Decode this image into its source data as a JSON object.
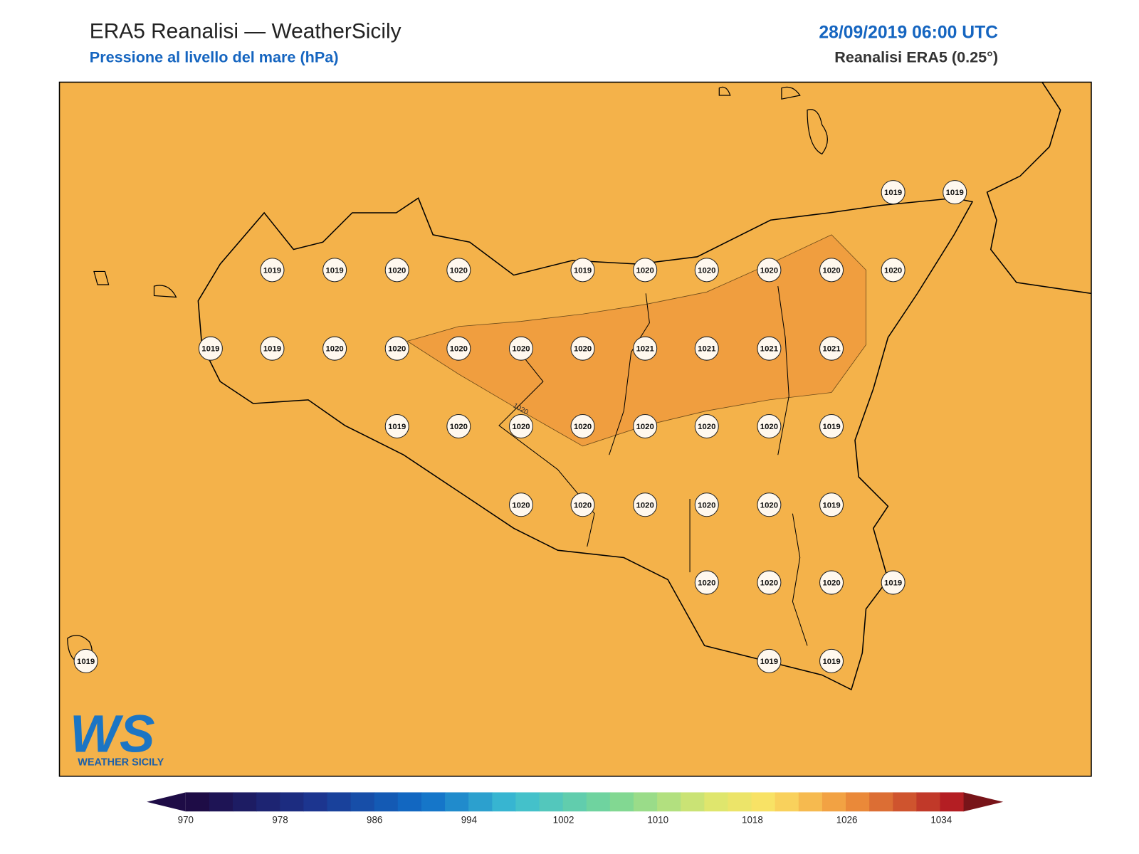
{
  "header": {
    "title": "ERA5 Reanalisi — WeatherSicily",
    "subtitle": "Pressione al livello del mare (hPa)",
    "date": "28/09/2019 06:00 UTC",
    "source": "Reanalisi ERA5 (0.25°)"
  },
  "map": {
    "contour_label": "1020",
    "stations": [
      1019,
      1019,
      1019,
      1019,
      1020,
      1020,
      1019,
      1020,
      1020,
      1020,
      1020,
      1020,
      1019,
      1019,
      1020,
      1020,
      1020,
      1020,
      1020,
      1021,
      1021,
      1021,
      1021,
      1019,
      1020,
      1020,
      1020,
      1020,
      1020,
      1020,
      1019,
      1020,
      1020,
      1020,
      1020,
      1020,
      1019,
      1020,
      1020,
      1020,
      1019,
      1019,
      1019,
      1019
    ]
  },
  "colorbar": {
    "ticks": [
      970,
      978,
      986,
      994,
      1002,
      1010,
      1018,
      1026,
      1034
    ]
  },
  "logo": {
    "mark": "WS",
    "name": "WEATHER SICILY"
  }
}
